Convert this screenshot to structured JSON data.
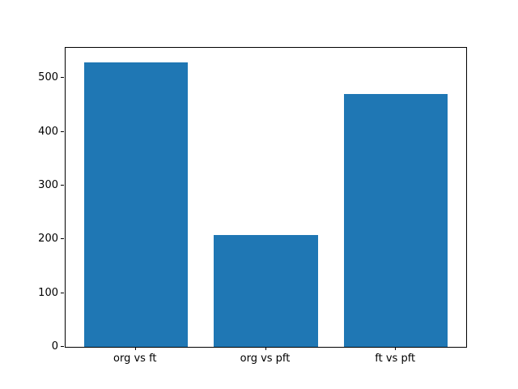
{
  "chart_data": {
    "type": "bar",
    "categories": [
      "org vs ft",
      "org vs pft",
      "ft vs pft"
    ],
    "values": [
      530,
      208,
      470
    ],
    "title": "",
    "xlabel": "",
    "ylabel": "",
    "ylim": [
      0,
      556.5
    ],
    "yticks": [
      0,
      100,
      200,
      300,
      400,
      500
    ],
    "bar_color": "#1f77b4",
    "bar_width_ratio": 0.8,
    "grid": false,
    "legend_position": "none"
  }
}
